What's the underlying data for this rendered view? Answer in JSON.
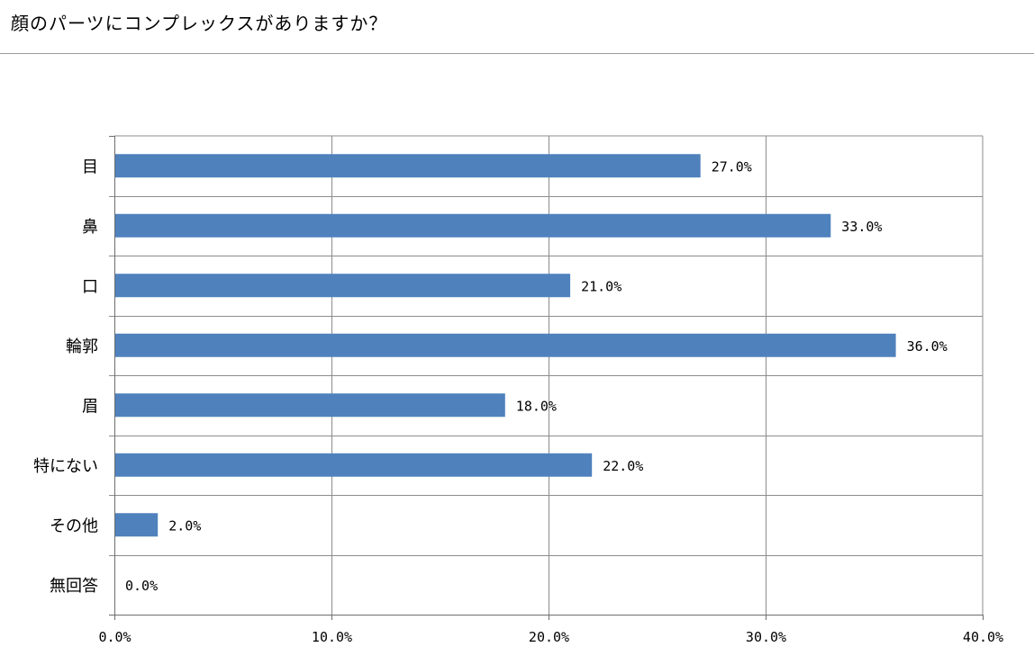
{
  "question": "顔のパーツにコンプレックスがありますか？",
  "colors": {
    "bar": "#4f81bd",
    "grid": "#8c8c8c",
    "axis": "#6e6e6e"
  },
  "chart_data": {
    "type": "bar",
    "orientation": "horizontal",
    "title": "",
    "xlabel": "",
    "ylabel": "",
    "xlim": [
      0,
      40
    ],
    "grid": true,
    "legend": "none",
    "categories": [
      "目",
      "鼻",
      "口",
      "輪郭",
      "眉",
      "特にない",
      "その他",
      "無回答"
    ],
    "values": [
      27.0,
      33.0,
      21.0,
      36.0,
      18.0,
      22.0,
      2.0,
      0.0
    ],
    "value_labels": [
      "27.0%",
      "33.0%",
      "21.0%",
      "36.0%",
      "18.0%",
      "22.0%",
      "2.0%",
      "0.0%"
    ],
    "x_ticks": [
      0,
      10,
      20,
      30,
      40
    ],
    "x_tick_labels": [
      "0.0%",
      "10.0%",
      "20.0%",
      "30.0%",
      "40.0%"
    ]
  }
}
